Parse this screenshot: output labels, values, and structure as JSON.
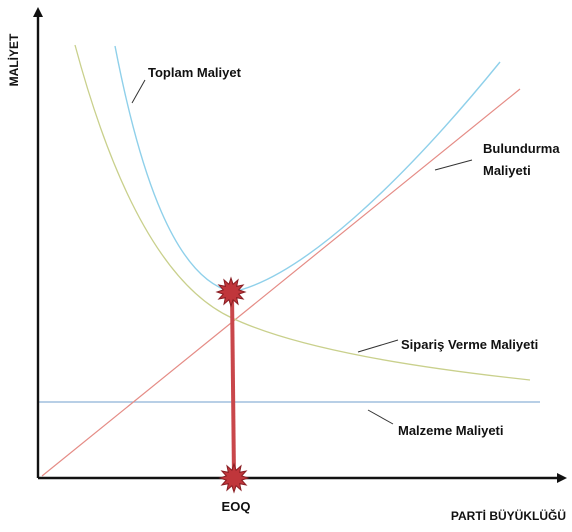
{
  "axes": {
    "ylabel": "MALİYET",
    "xlabel": "PARTİ BÜYÜKLÜĞÜ",
    "eoq_label": "EOQ"
  },
  "curves": {
    "total": {
      "label": "Toplam Maliyet",
      "color": "#8fd0ea"
    },
    "holding": {
      "label_line1": "Bulundurma",
      "label_line2": "Maliyeti",
      "color": "#e58c86"
    },
    "ordering": {
      "label": "Sipariş Verme Maliyeti",
      "color": "#c9d08c"
    },
    "material": {
      "label": "Malzeme Maliyeti",
      "color": "#8db2d6"
    }
  },
  "eoq_marker": {
    "color": "#c0363b",
    "line_color": "#c9474b"
  }
}
